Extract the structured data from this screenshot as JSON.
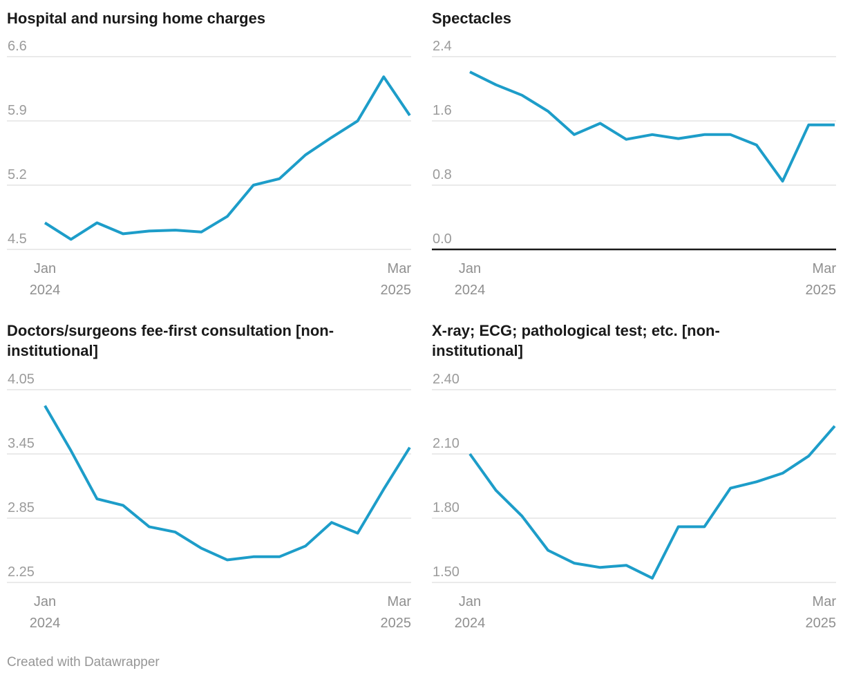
{
  "colors": {
    "line": "#1d9dc9",
    "grid": "#dddddd",
    "baseline": "#1a1a1a",
    "tick_label": "#9b9b9b",
    "title": "#191919"
  },
  "x_axis": {
    "start": [
      "Jan",
      "2024"
    ],
    "end": [
      "Mar",
      "2025"
    ]
  },
  "footer": {
    "credit": "Created with Datawrapper"
  },
  "chart_data": [
    {
      "type": "line",
      "title": "Hospital and nursing home charges",
      "y_tick_labels": [
        "6.6",
        "5.9",
        "5.2",
        "4.5"
      ],
      "y_max": 6.6,
      "y_min": 4.5,
      "zero_baseline": false,
      "x_months": [
        "Jan 2024",
        "Feb 2024",
        "Mar 2024",
        "Apr 2024",
        "May 2024",
        "Jun 2024",
        "Jul 2024",
        "Aug 2024",
        "Sep 2024",
        "Oct 2024",
        "Nov 2024",
        "Dec 2024",
        "Jan 2025",
        "Feb 2025",
        "Mar 2025"
      ],
      "values": [
        4.79,
        4.61,
        4.79,
        4.67,
        4.7,
        4.71,
        4.69,
        4.86,
        5.2,
        5.27,
        5.53,
        5.72,
        5.9,
        6.38,
        5.96
      ]
    },
    {
      "type": "line",
      "title": "Spectacles",
      "y_tick_labels": [
        "2.4",
        "1.6",
        "0.8",
        "0.0"
      ],
      "y_max": 2.4,
      "y_min": 0.0,
      "zero_baseline": true,
      "x_months": [
        "Jan 2024",
        "Feb 2024",
        "Mar 2024",
        "Apr 2024",
        "May 2024",
        "Jun 2024",
        "Jul 2024",
        "Aug 2024",
        "Sep 2024",
        "Oct 2024",
        "Nov 2024",
        "Dec 2024",
        "Jan 2025",
        "Feb 2025",
        "Mar 2025"
      ],
      "values": [
        2.21,
        2.05,
        1.92,
        1.72,
        1.43,
        1.57,
        1.37,
        1.43,
        1.38,
        1.43,
        1.43,
        1.3,
        0.85,
        1.55,
        1.55
      ]
    },
    {
      "type": "line",
      "title": "Doctors/surgeons fee-first consultation [non-institutional]",
      "y_tick_labels": [
        "4.05",
        "3.45",
        "2.85",
        "2.25"
      ],
      "y_max": 4.05,
      "y_min": 2.25,
      "zero_baseline": false,
      "x_months": [
        "Jan 2024",
        "Feb 2024",
        "Mar 2024",
        "Apr 2024",
        "May 2024",
        "Jun 2024",
        "Jul 2024",
        "Aug 2024",
        "Sep 2024",
        "Oct 2024",
        "Nov 2024",
        "Dec 2024",
        "Jan 2025",
        "Feb 2025",
        "Mar 2025"
      ],
      "values": [
        3.9,
        3.48,
        3.03,
        2.97,
        2.77,
        2.72,
        2.57,
        2.46,
        2.49,
        2.49,
        2.59,
        2.81,
        2.71,
        3.12,
        3.51
      ]
    },
    {
      "type": "line",
      "title": "X-ray; ECG; pathological test; etc. [non-institutional]",
      "y_tick_labels": [
        "2.40",
        "2.10",
        "1.80",
        "1.50"
      ],
      "y_max": 2.4,
      "y_min": 1.5,
      "zero_baseline": false,
      "x_months": [
        "Jan 2024",
        "Feb 2024",
        "Mar 2024",
        "Apr 2024",
        "May 2024",
        "Jun 2024",
        "Jul 2024",
        "Aug 2024",
        "Sep 2024",
        "Oct 2024",
        "Nov 2024",
        "Dec 2024",
        "Jan 2025",
        "Feb 2025",
        "Mar 2025"
      ],
      "values": [
        2.1,
        1.93,
        1.81,
        1.65,
        1.59,
        1.57,
        1.58,
        1.52,
        1.76,
        1.76,
        1.94,
        1.97,
        2.01,
        2.09,
        2.23
      ]
    }
  ]
}
